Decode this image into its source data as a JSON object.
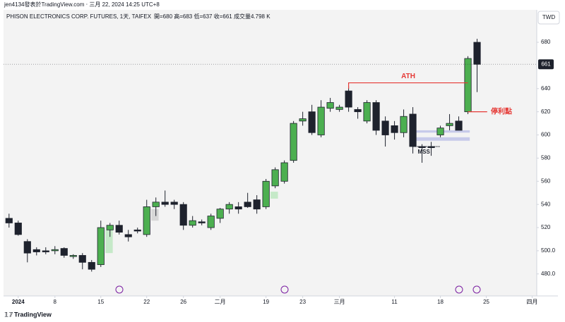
{
  "chart_data": {
    "type": "candlestick",
    "watermark": "jen4134發表於TradingView.com ‧ 三月 22, 2024 14:25 UTC+8",
    "title": "PHISON ELECTRONICS CORP. FUTURES, 1天, TAIFEX",
    "ohlc_text": "開=680 高=683 低=637 收=661 成交量4.798 K",
    "currency": "TWD",
    "brand": "TradingView",
    "price_label": 661,
    "up_color": "#4caf50",
    "down_color": "#1e222d",
    "open": [
      528,
      524,
      508,
      501,
      500,
      500,
      502,
      495,
      496,
      490,
      488,
      518,
      522,
      514,
      518,
      514,
      538,
      542,
      542,
      540,
      522,
      525,
      520,
      528,
      536,
      538,
      542,
      544,
      538,
      556,
      560,
      578,
      612,
      620,
      600,
      623,
      622,
      638,
      622,
      612,
      628,
      612,
      608,
      602,
      618,
      590,
      590,
      600,
      608,
      612,
      620,
      680
    ],
    "high": [
      532,
      526,
      510,
      503,
      503,
      504,
      503,
      497,
      498,
      492,
      526,
      524,
      526,
      518,
      520,
      544,
      546,
      552,
      544,
      542,
      530,
      527,
      532,
      537,
      542,
      542,
      550,
      548,
      562,
      572,
      578,
      612,
      620,
      626,
      630,
      632,
      626,
      642,
      624,
      630,
      630,
      616,
      612,
      622,
      624,
      592,
      594,
      608,
      618,
      616,
      668,
      683
    ],
    "low": [
      520,
      513,
      490,
      496,
      497,
      497,
      494,
      493,
      484,
      482,
      486,
      512,
      514,
      508,
      515,
      512,
      530,
      538,
      536,
      518,
      520,
      522,
      518,
      524,
      532,
      532,
      537,
      532,
      536,
      554,
      558,
      576,
      608,
      600,
      598,
      620,
      620,
      620,
      614,
      610,
      600,
      590,
      596,
      598,
      584,
      576,
      582,
      598,
      604,
      604,
      618,
      637
    ],
    "close": [
      524,
      514,
      498,
      499,
      499,
      501,
      496,
      496,
      490,
      484,
      520,
      522,
      516,
      512,
      517,
      538,
      542,
      540,
      540,
      522,
      526,
      524,
      530,
      536,
      540,
      536,
      538,
      536,
      560,
      570,
      576,
      610,
      614,
      602,
      624,
      628,
      624,
      624,
      620,
      628,
      604,
      600,
      602,
      616,
      590,
      589,
      589,
      606,
      610,
      604,
      666,
      661
    ],
    "xlim": [
      -0.6,
      57.5
    ],
    "xticks": [
      {
        "value": 1,
        "label": "2024"
      },
      {
        "value": 5,
        "label": "8"
      },
      {
        "value": 10,
        "label": "15"
      },
      {
        "value": 15,
        "label": "22"
      },
      {
        "value": 19,
        "label": "26"
      },
      {
        "value": 23,
        "label": "二月"
      },
      {
        "value": 28,
        "label": "19"
      },
      {
        "value": 32,
        "label": "23"
      },
      {
        "value": 36,
        "label": "三月"
      },
      {
        "value": 42,
        "label": "11"
      },
      {
        "value": 47,
        "label": "18"
      },
      {
        "value": 52,
        "label": "25"
      },
      {
        "value": 57,
        "label": "四月"
      }
    ],
    "ylim": [
      461,
      708
    ],
    "yticks": [
      680,
      640,
      620,
      600,
      580,
      560,
      540,
      520,
      {
        "value": 500,
        "label": "500.0"
      },
      {
        "value": 480,
        "label": "480.0"
      }
    ],
    "grid": false,
    "annotations": [
      {
        "text": "ATH",
        "value": 645,
        "color": "#e53935"
      },
      {
        "text": "停利點",
        "value": 620,
        "color": "#e53935"
      },
      {
        "text": "MSS",
        "value": 590,
        "color": "#1e222d"
      }
    ]
  }
}
